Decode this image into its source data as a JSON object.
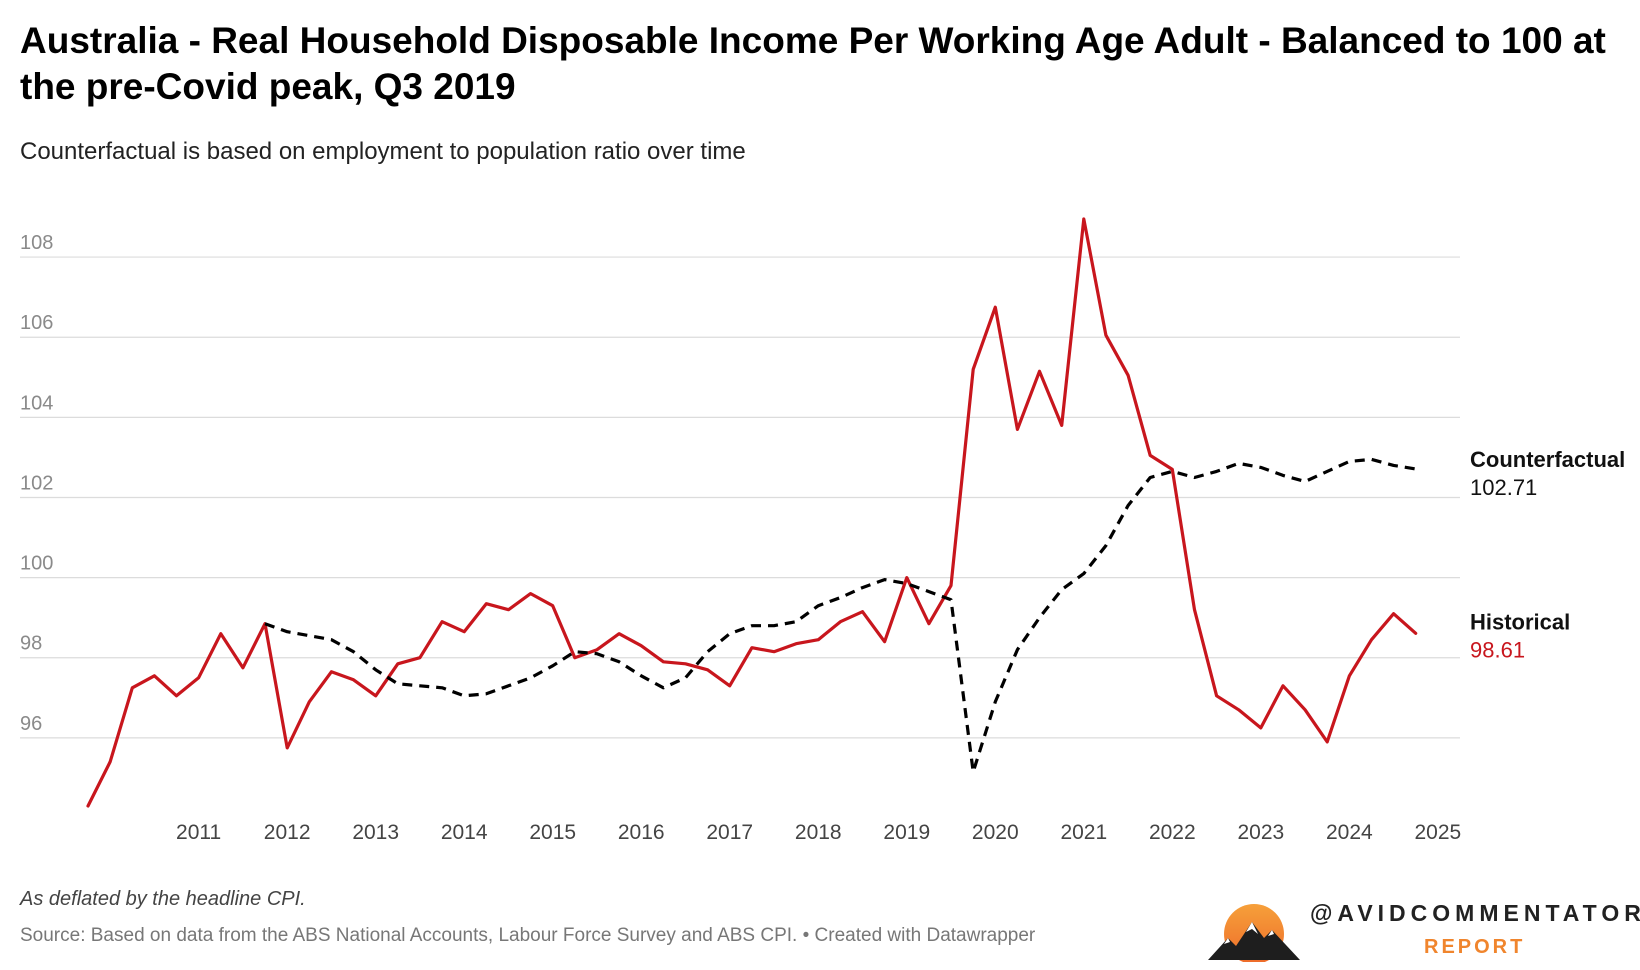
{
  "header": {
    "title": "Australia - Real Household Disposable Income Per Working Age Adult - Balanced to 100 at the pre-Covid peak, Q3 2019",
    "subtitle": "Counterfactual is based on employment to population ratio over time"
  },
  "footer": {
    "notes": "As deflated by the headline CPI.",
    "source": "Source: Based on data from the ABS National Accounts, Labour Force Survey and ABS CPI. • Created with Datawrapper"
  },
  "branding": {
    "handle": "@AVIDCOMMENTATOR",
    "sub": "REPORT",
    "accent": "#f0852d"
  },
  "chart_data": {
    "type": "line",
    "title": "Australia - Real Household Disposable Income Per Working Age Adult - Balanced to 100 at the pre-Covid peak, Q3 2019",
    "subtitle": "Counterfactual is based on employment to population ratio over time",
    "xlabel": "",
    "ylabel": "",
    "grid": true,
    "x_range": [
      2010.25,
      2025.75
    ],
    "ylim": [
      94.2,
      109.3
    ],
    "x_ticks": [
      "2011",
      "2012",
      "2013",
      "2014",
      "2015",
      "2016",
      "2017",
      "2018",
      "2019",
      "2020",
      "2021",
      "2022",
      "2023",
      "2024",
      "2025"
    ],
    "y_ticks": [
      96,
      98,
      100,
      102,
      104,
      106,
      108
    ],
    "series": [
      {
        "name": "Historical",
        "color": "#c8161d",
        "style": "solid",
        "end_label": "Historical",
        "end_value": "98.61",
        "start": 2010.25,
        "step": 0.25,
        "values": [
          94.3,
          95.4,
          97.25,
          97.55,
          97.05,
          97.5,
          98.6,
          97.75,
          98.85,
          95.75,
          96.9,
          97.65,
          97.45,
          97.05,
          97.85,
          98.0,
          98.9,
          98.65,
          99.35,
          99.2,
          99.6,
          99.3,
          98.0,
          98.2,
          98.6,
          98.3,
          97.9,
          97.85,
          97.7,
          97.3,
          98.25,
          98.15,
          98.35,
          98.45,
          98.9,
          99.15,
          98.4,
          100.0,
          98.85,
          99.8,
          105.2,
          106.75,
          103.7,
          105.15,
          103.8,
          108.95,
          106.05,
          105.05,
          103.05,
          102.7,
          99.2,
          97.05,
          96.7,
          96.25,
          97.3,
          96.7,
          95.9,
          97.55,
          98.45,
          99.1,
          98.61
        ]
      },
      {
        "name": "Counterfactual",
        "color": "#000000",
        "style": "dashed",
        "end_label": "Counterfactual",
        "end_value": "102.71",
        "start": 2012.25,
        "step": 0.25,
        "values": [
          98.85,
          98.65,
          98.55,
          98.45,
          98.15,
          97.7,
          97.35,
          97.3,
          97.25,
          97.05,
          97.1,
          97.3,
          97.5,
          97.8,
          98.15,
          98.1,
          97.9,
          97.55,
          97.25,
          97.5,
          98.15,
          98.6,
          98.8,
          98.8,
          98.9,
          99.3,
          99.5,
          99.75,
          99.95,
          99.85,
          99.65,
          99.45,
          95.15,
          96.9,
          98.2,
          99.0,
          99.7,
          100.1,
          100.8,
          101.8,
          102.5,
          102.65,
          102.5,
          102.65,
          102.85,
          102.75,
          102.55,
          102.4,
          102.65,
          102.9,
          102.95,
          102.8,
          102.71
        ]
      }
    ]
  }
}
